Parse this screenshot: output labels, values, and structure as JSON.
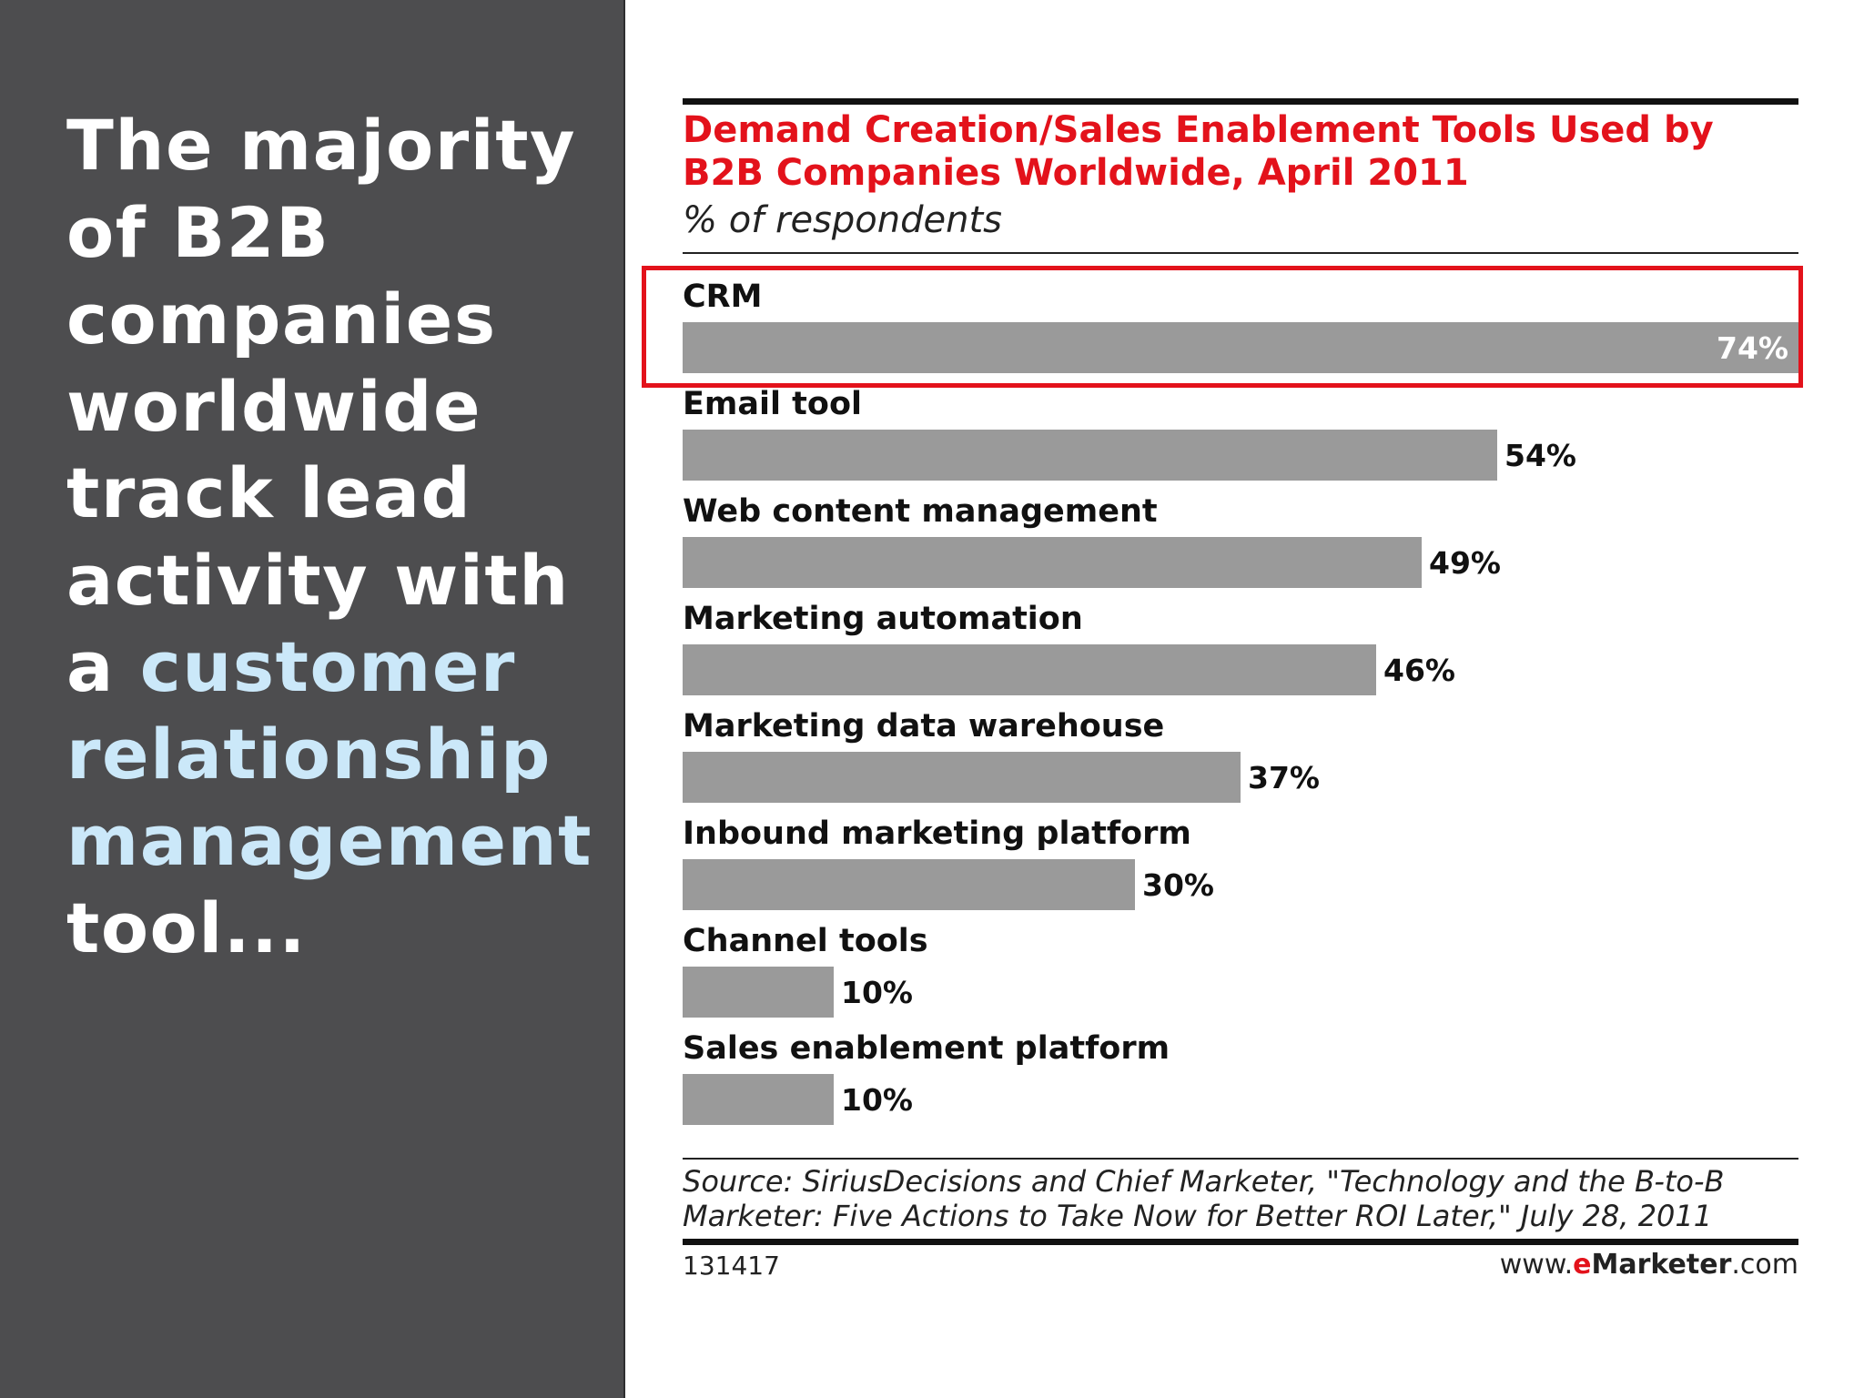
{
  "headline": {
    "lines": [
      {
        "text": "The majority",
        "highlight": false
      },
      {
        "text": "of B2B",
        "highlight": false
      },
      {
        "text": "companies",
        "highlight": false
      },
      {
        "text": "worldwide",
        "highlight": false
      },
      {
        "text": "track lead",
        "highlight": false
      },
      {
        "text": "activity with",
        "highlight": false
      },
      {
        "prefix": "a ",
        "text": "customer",
        "highlight": true
      },
      {
        "text": "relationship",
        "highlight": true
      },
      {
        "text": "management",
        "highlight": true
      },
      {
        "text": "tool...",
        "highlight": false
      }
    ],
    "text_color": "#ffffff",
    "highlight_color": "#cbe8f9",
    "panel_color": "#4d4d4f"
  },
  "chart_data": {
    "type": "bar",
    "orientation": "horizontal",
    "title_lines": [
      "Demand Creation/Sales Enablement Tools Used by",
      "B2B Companies Worldwide, April 2011"
    ],
    "subtitle": "% of respondents",
    "categories": [
      "CRM",
      "Email tool",
      "Web content management",
      "Marketing automation",
      "Marketing data warehouse",
      "Inbound marketing platform",
      "Channel tools",
      "Sales enablement platform"
    ],
    "values": [
      74,
      54,
      49,
      46,
      37,
      30,
      10,
      10
    ],
    "value_labels": [
      "74%",
      "54%",
      "49%",
      "46%",
      "37%",
      "30%",
      "10%",
      "10%"
    ],
    "xlim": [
      0,
      74
    ],
    "highlighted_category": "CRM",
    "bar_color": "#9a9a9a",
    "title_color": "#e3121b",
    "highlight_color": "#e3121b"
  },
  "source": {
    "lines": [
      "Source: SiriusDecisions and Chief Marketer, \"Technology and the B-to-B",
      "Marketer: Five Actions to Take Now for Better ROI Later,\" July 28, 2011"
    ]
  },
  "chart_id": "131417",
  "brand": {
    "prefix": "www.",
    "e": "e",
    "name": "Marketer",
    "suffix": ".com"
  }
}
